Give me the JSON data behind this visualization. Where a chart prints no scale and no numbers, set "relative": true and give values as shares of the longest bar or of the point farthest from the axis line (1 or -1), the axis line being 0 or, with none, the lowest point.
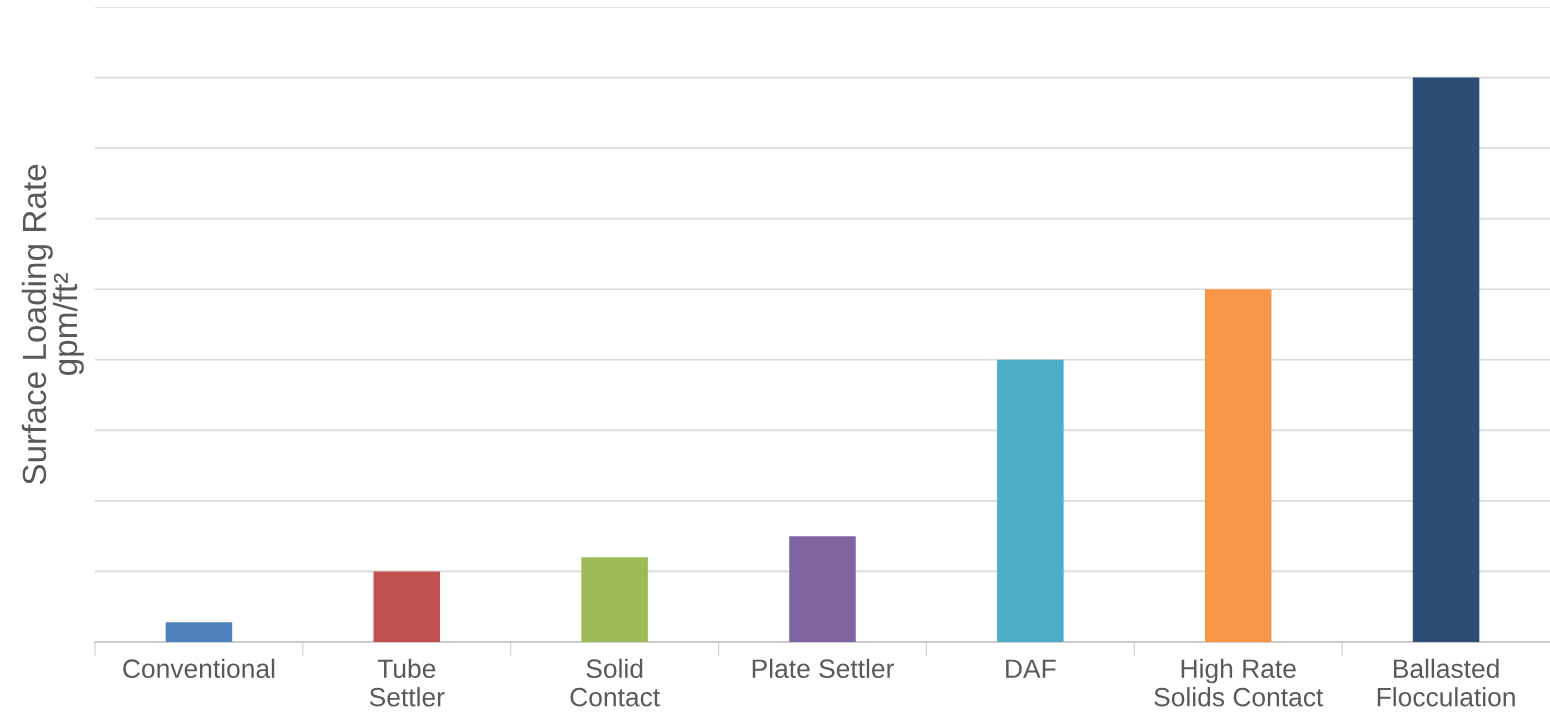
{
  "chart_data": {
    "type": "bar",
    "ylabel": "Surface Loading Rate\ngpm/ft²",
    "relative": true,
    "grid": "y",
    "categories": [
      "Conventional",
      "Tube\nSettler",
      "Solid\nContact",
      "Plate Settler",
      "DAF",
      "High Rate\nSolids Contact",
      "Ballasted\nFlocculation"
    ],
    "values": [
      0.035,
      0.125,
      0.15,
      0.1875,
      0.5,
      0.625,
      1
    ],
    "colors": [
      "#4f81bd",
      "#c0504d",
      "#9bbb59",
      "#8064a2",
      "#4bacc6",
      "#f79646",
      "#2c4d75"
    ]
  }
}
